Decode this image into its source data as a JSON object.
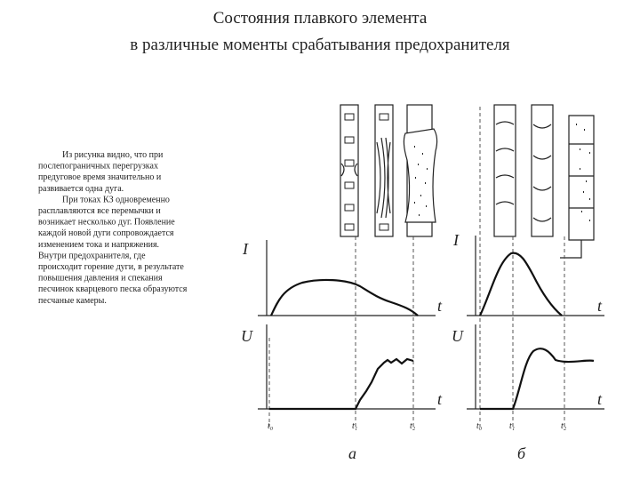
{
  "title": [
    "Состояния плавкого элемента",
    "в различные моменты срабатывания предохранителя"
  ],
  "body": {
    "paragraphs": [
      [
        "Из рисунка видно, что при",
        "послепограничных перегрузках",
        "предуговое время значительно и",
        "развивается одна дуга."
      ],
      [
        "При токах КЗ одновременно",
        "расплавляются все перемычки и",
        "возникает несколько дуг. Появление",
        "каждой новой дуги сопровождается",
        "изменением тока и напряжения.",
        "Внутри предохранителя, где",
        "происходит горение дуги, в результате",
        "повышения давления и спекания",
        "песчинок кварцевого песка образуются",
        "песчаные камеры."
      ]
    ]
  },
  "diagram": {
    "panels": [
      {
        "current_axis": "I",
        "voltage_axis": "U",
        "time_axis": "t",
        "time_marks": [
          "t₀",
          "t₁",
          "t₂"
        ],
        "caption": "а"
      },
      {
        "current_axis": "I",
        "voltage_axis": "U",
        "time_axis": "t",
        "time_marks": [
          "t₀",
          "t₁",
          "t₂"
        ],
        "caption": "б"
      }
    ]
  }
}
